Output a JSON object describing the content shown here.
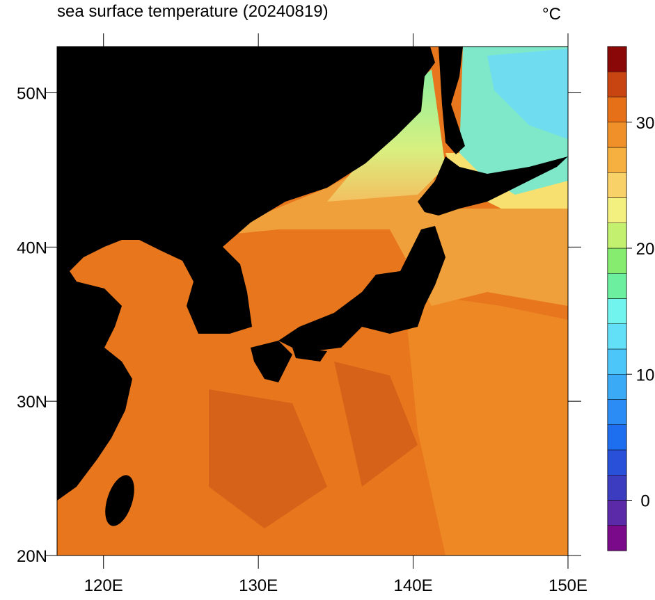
{
  "chart_data": {
    "type": "map",
    "title": "sea surface temperature (20240819)",
    "units": "°C",
    "xlim": [
      117,
      150
    ],
    "ylim": [
      20,
      53
    ],
    "xticks": [
      {
        "value": 120,
        "label": "120E"
      },
      {
        "value": 130,
        "label": "130E"
      },
      {
        "value": 140,
        "label": "140E"
      },
      {
        "value": 150,
        "label": "150E"
      }
    ],
    "yticks": [
      {
        "value": 20,
        "label": "20N"
      },
      {
        "value": 30,
        "label": "30N"
      },
      {
        "value": 40,
        "label": "40N"
      },
      {
        "value": 50,
        "label": "50N"
      }
    ],
    "colorbar": {
      "lim": [
        -4,
        36
      ],
      "ticks": [
        0,
        10,
        20,
        30
      ],
      "colors": [
        "#7a0a8a",
        "#5a2aa8",
        "#3c3cc0",
        "#2850d8",
        "#1e6ef0",
        "#2a8cf4",
        "#3aaaf6",
        "#4cc6f8",
        "#62e0f8",
        "#72f4ee",
        "#6cf0a0",
        "#86ec70",
        "#c4f070",
        "#f4f080",
        "#f8d268",
        "#f6b040",
        "#f09028",
        "#e67018",
        "#c84410",
        "#8a0808"
      ]
    }
  }
}
